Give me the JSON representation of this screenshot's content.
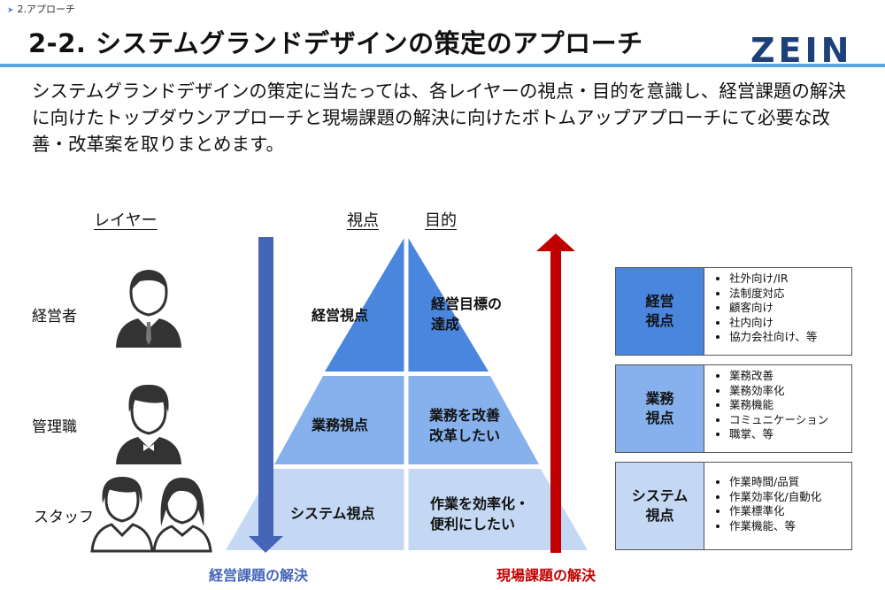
{
  "breadcrumb": "2.アプローチ",
  "title": "2-2. システムグランドデザインの策定のアプローチ",
  "logo": {
    "text": "ZEIN",
    "colors": [
      "#1d3f7a",
      "#3b9ad8"
    ]
  },
  "intro": "システムグランドデザインの策定に当たっては、各レイヤーの視点・目的を意識し、経営課題の解決に向けたトップダウンアプローチと現場課題の解決に向けたボトムアップアプローチにて必要な改善・改革案を取りまとめます。",
  "headers": {
    "layer": "レイヤー",
    "viewpoint": "視点",
    "purpose": "目的"
  },
  "layers": [
    {
      "label": "経営者",
      "icon": "executive-icon"
    },
    {
      "label": "管理職",
      "icon": "manager-icon"
    },
    {
      "label": "スタッフ",
      "icon": "staff-icon"
    }
  ],
  "pyramid": {
    "colors": [
      "#4a86de",
      "#86b1ec",
      "#c4d8f4"
    ],
    "levels": [
      {
        "viewpoint": "経営視点",
        "purpose_lines": [
          "経営目標の",
          "達成"
        ]
      },
      {
        "viewpoint": "業務視点",
        "purpose_lines": [
          "業務を改善",
          "改革したい"
        ]
      },
      {
        "viewpoint": "システム視点",
        "purpose_lines": [
          "作業を効率化・",
          "便利にしたい"
        ]
      }
    ]
  },
  "arrows": {
    "top_down": {
      "label": "経営課題の解決",
      "color": "#4566b8"
    },
    "bottom_up": {
      "label": "現場課題の解決",
      "color": "#c00000"
    }
  },
  "boxes": [
    {
      "label_lines": [
        "経営",
        "視点"
      ],
      "color": "#4a86de",
      "items": [
        "社外向け/IR",
        "法制度対応",
        "顧客向け",
        "社内向け",
        "協力会社向け、等"
      ]
    },
    {
      "label_lines": [
        "業務",
        "視点"
      ],
      "color": "#86b1ec",
      "items": [
        "業務改善",
        "業務効率化",
        "業務機能",
        "コミュニケーション",
        "職掌、等"
      ]
    },
    {
      "label_lines": [
        "システム",
        "視点"
      ],
      "color": "#c4d8f4",
      "items": [
        "作業時間/品質",
        "作業効率化/自動化",
        "作業標準化",
        "作業機能、等"
      ]
    }
  ]
}
